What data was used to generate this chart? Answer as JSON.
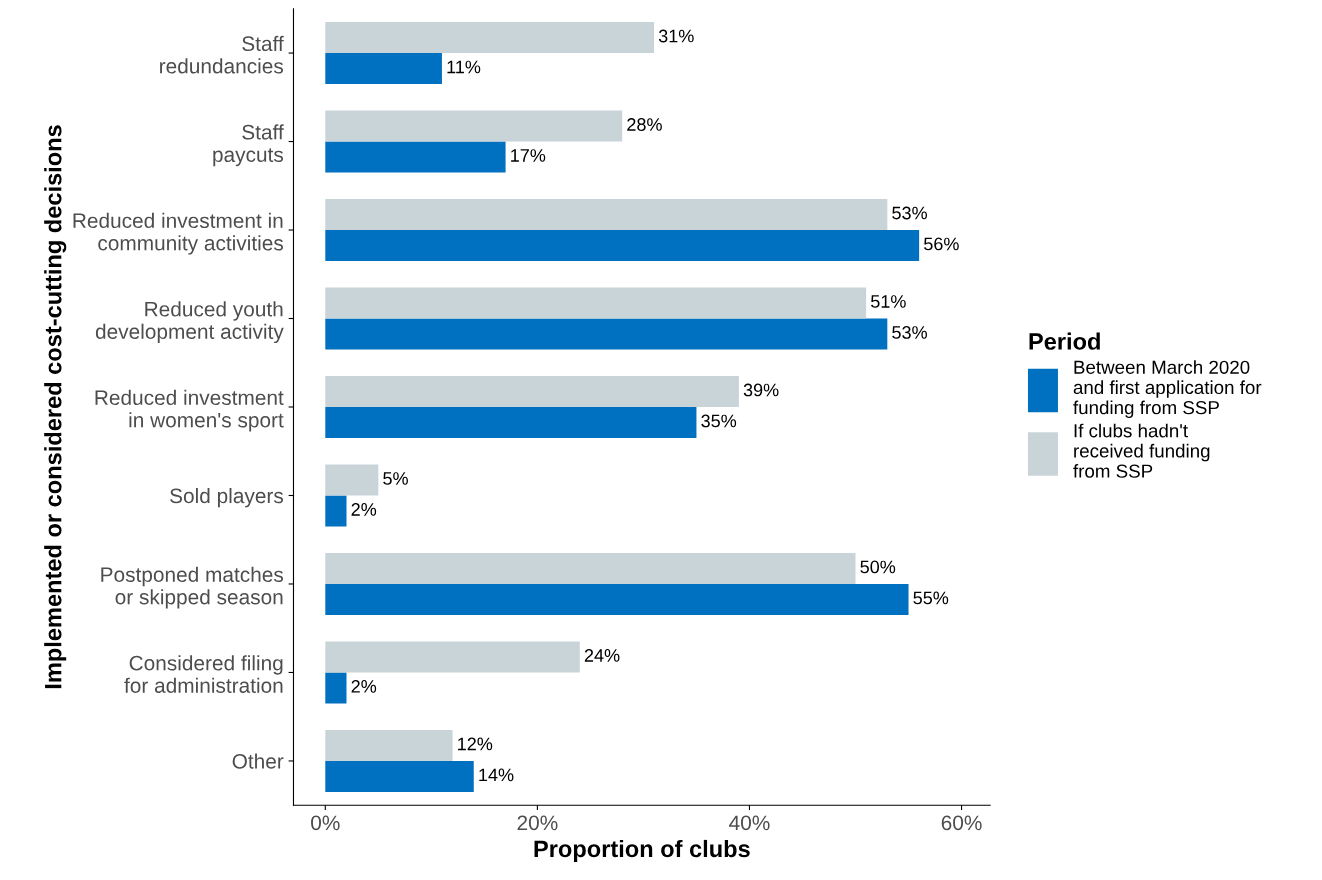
{
  "chart_data": {
    "type": "bar",
    "orientation": "horizontal",
    "xlabel": "Proportion of clubs",
    "ylabel": "Implemented or considered cost-cutting decisions",
    "legend_title": "Period",
    "categories": [
      "Staff\nredundancies",
      "Staff\npaycuts",
      "Reduced investment in\ncommunity activities",
      "Reduced youth\ndevelopment activity",
      "Reduced investment\nin women's sport",
      "Sold players",
      "Postponed matches\nor skipped season",
      "Considered filing\nfor administration",
      "Other"
    ],
    "series": [
      {
        "name": "Between March 2020\nand first application for\nfunding from SSP",
        "color": "#0070c0",
        "values": [
          11,
          17,
          56,
          53,
          35,
          2,
          55,
          2,
          14
        ],
        "value_labels": [
          "11%",
          "17%",
          "56%",
          "53%",
          "35%",
          "2%",
          "55%",
          "2%",
          "14%"
        ]
      },
      {
        "name": "If clubs hadn't\nreceived funding\nfrom SSP",
        "color": "#c9d4d9",
        "values": [
          31,
          28,
          53,
          51,
          39,
          5,
          50,
          24,
          12
        ],
        "value_labels": [
          "31%",
          "28%",
          "53%",
          "51%",
          "39%",
          "5%",
          "50%",
          "24%",
          "12%"
        ]
      }
    ],
    "xlim": [
      -3,
      62.7
    ],
    "xticks": [
      {
        "value": 0,
        "label": "0%"
      },
      {
        "value": 20,
        "label": "20%"
      },
      {
        "value": 40,
        "label": "40%"
      },
      {
        "value": 60,
        "label": "60%"
      }
    ],
    "grid": false,
    "legend": "right"
  }
}
